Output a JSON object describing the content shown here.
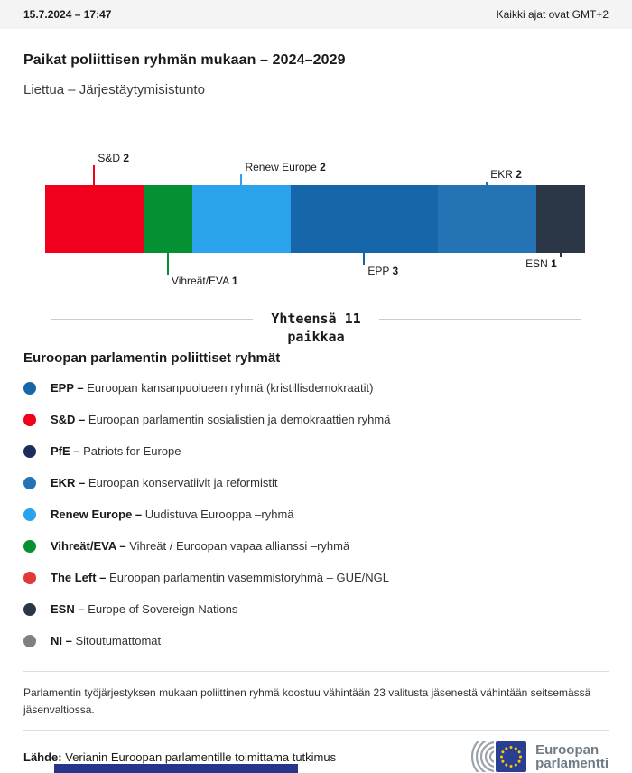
{
  "header": {
    "datetime": "15.7.2024 – 17:47",
    "timezone_note": "Kaikki ajat ovat GMT+2"
  },
  "title": "Paikat poliittisen ryhmän mukaan – 2024–2029",
  "subtitle": "Liettua – Järjestäytymisistunto",
  "chart_data": {
    "type": "bar",
    "title": "Paikat poliittisen ryhmän mukaan – 2024–2029",
    "region": "Liettua",
    "session": "Järjestäytymisistunto",
    "total_seats": 11,
    "total_line1": "Yhteensä 11",
    "total_line2": "paikkaa",
    "segments": [
      {
        "name": "S&D",
        "value": 2,
        "color": "#f0001c",
        "label_side": "top",
        "label_align": "after"
      },
      {
        "name": "Vihreät/EVA",
        "value": 1,
        "color": "#059033",
        "label_side": "bottom",
        "label_align": "after"
      },
      {
        "name": "Renew Europe",
        "value": 2,
        "color": "#2aa3ec",
        "label_side": "top",
        "label_align": "after"
      },
      {
        "name": "EPP",
        "value": 3,
        "color": "#1567a9",
        "label_side": "bottom",
        "label_align": "after"
      },
      {
        "name": "EKR",
        "value": 2,
        "color": "#2473b4",
        "label_side": "top",
        "label_align": "after"
      },
      {
        "name": "ESN",
        "value": 1,
        "color": "#2b3747",
        "label_side": "bottom",
        "label_align": "before"
      }
    ]
  },
  "legend": {
    "heading": "Euroopan parlamentin poliittiset ryhmät",
    "items": [
      {
        "abbr": "EPP –",
        "description": "Euroopan kansanpuolueen ryhmä (kristillisdemokraatit)",
        "color": "#1567a9"
      },
      {
        "abbr": "S&D –",
        "description": "Euroopan parlamentin sosialistien ja demokraattien ryhmä",
        "color": "#f0001c"
      },
      {
        "abbr": "PfE –",
        "description": "Patriots for Europe",
        "color": "#1d2d5b"
      },
      {
        "abbr": "EKR –",
        "description": "Euroopan konservatiivit ja reformistit",
        "color": "#2473b4"
      },
      {
        "abbr": "Renew Europe –",
        "description": "Uudistuva Eurooppa –ryhmä",
        "color": "#2aa3ec"
      },
      {
        "abbr": "Vihreät/EVA –",
        "description": "Vihreät / Euroopan vapaa allianssi –ryhmä",
        "color": "#059033"
      },
      {
        "abbr": "The Left –",
        "description": "Euroopan parlamentin vasemmistoryhmä – GUE/NGL",
        "color": "#de3a38"
      },
      {
        "abbr": "ESN –",
        "description": "Europe of Sovereign Nations",
        "color": "#2b3747"
      },
      {
        "abbr": "NI –",
        "description": "Sitoutumattomat",
        "color": "#808080"
      }
    ]
  },
  "footnote": "Parlamentin työjärjestyksen mukaan poliittinen ryhmä koostuu vähintään 23 valitusta jäsenestä vähintään seitsemässä jäsenvaltiossa.",
  "source": {
    "label": "Lähde:",
    "text": "Verianin Euroopan parlamentille toimittama tutkimus"
  },
  "logo": {
    "line1": "Euroopan",
    "line2": "parlamentti"
  }
}
